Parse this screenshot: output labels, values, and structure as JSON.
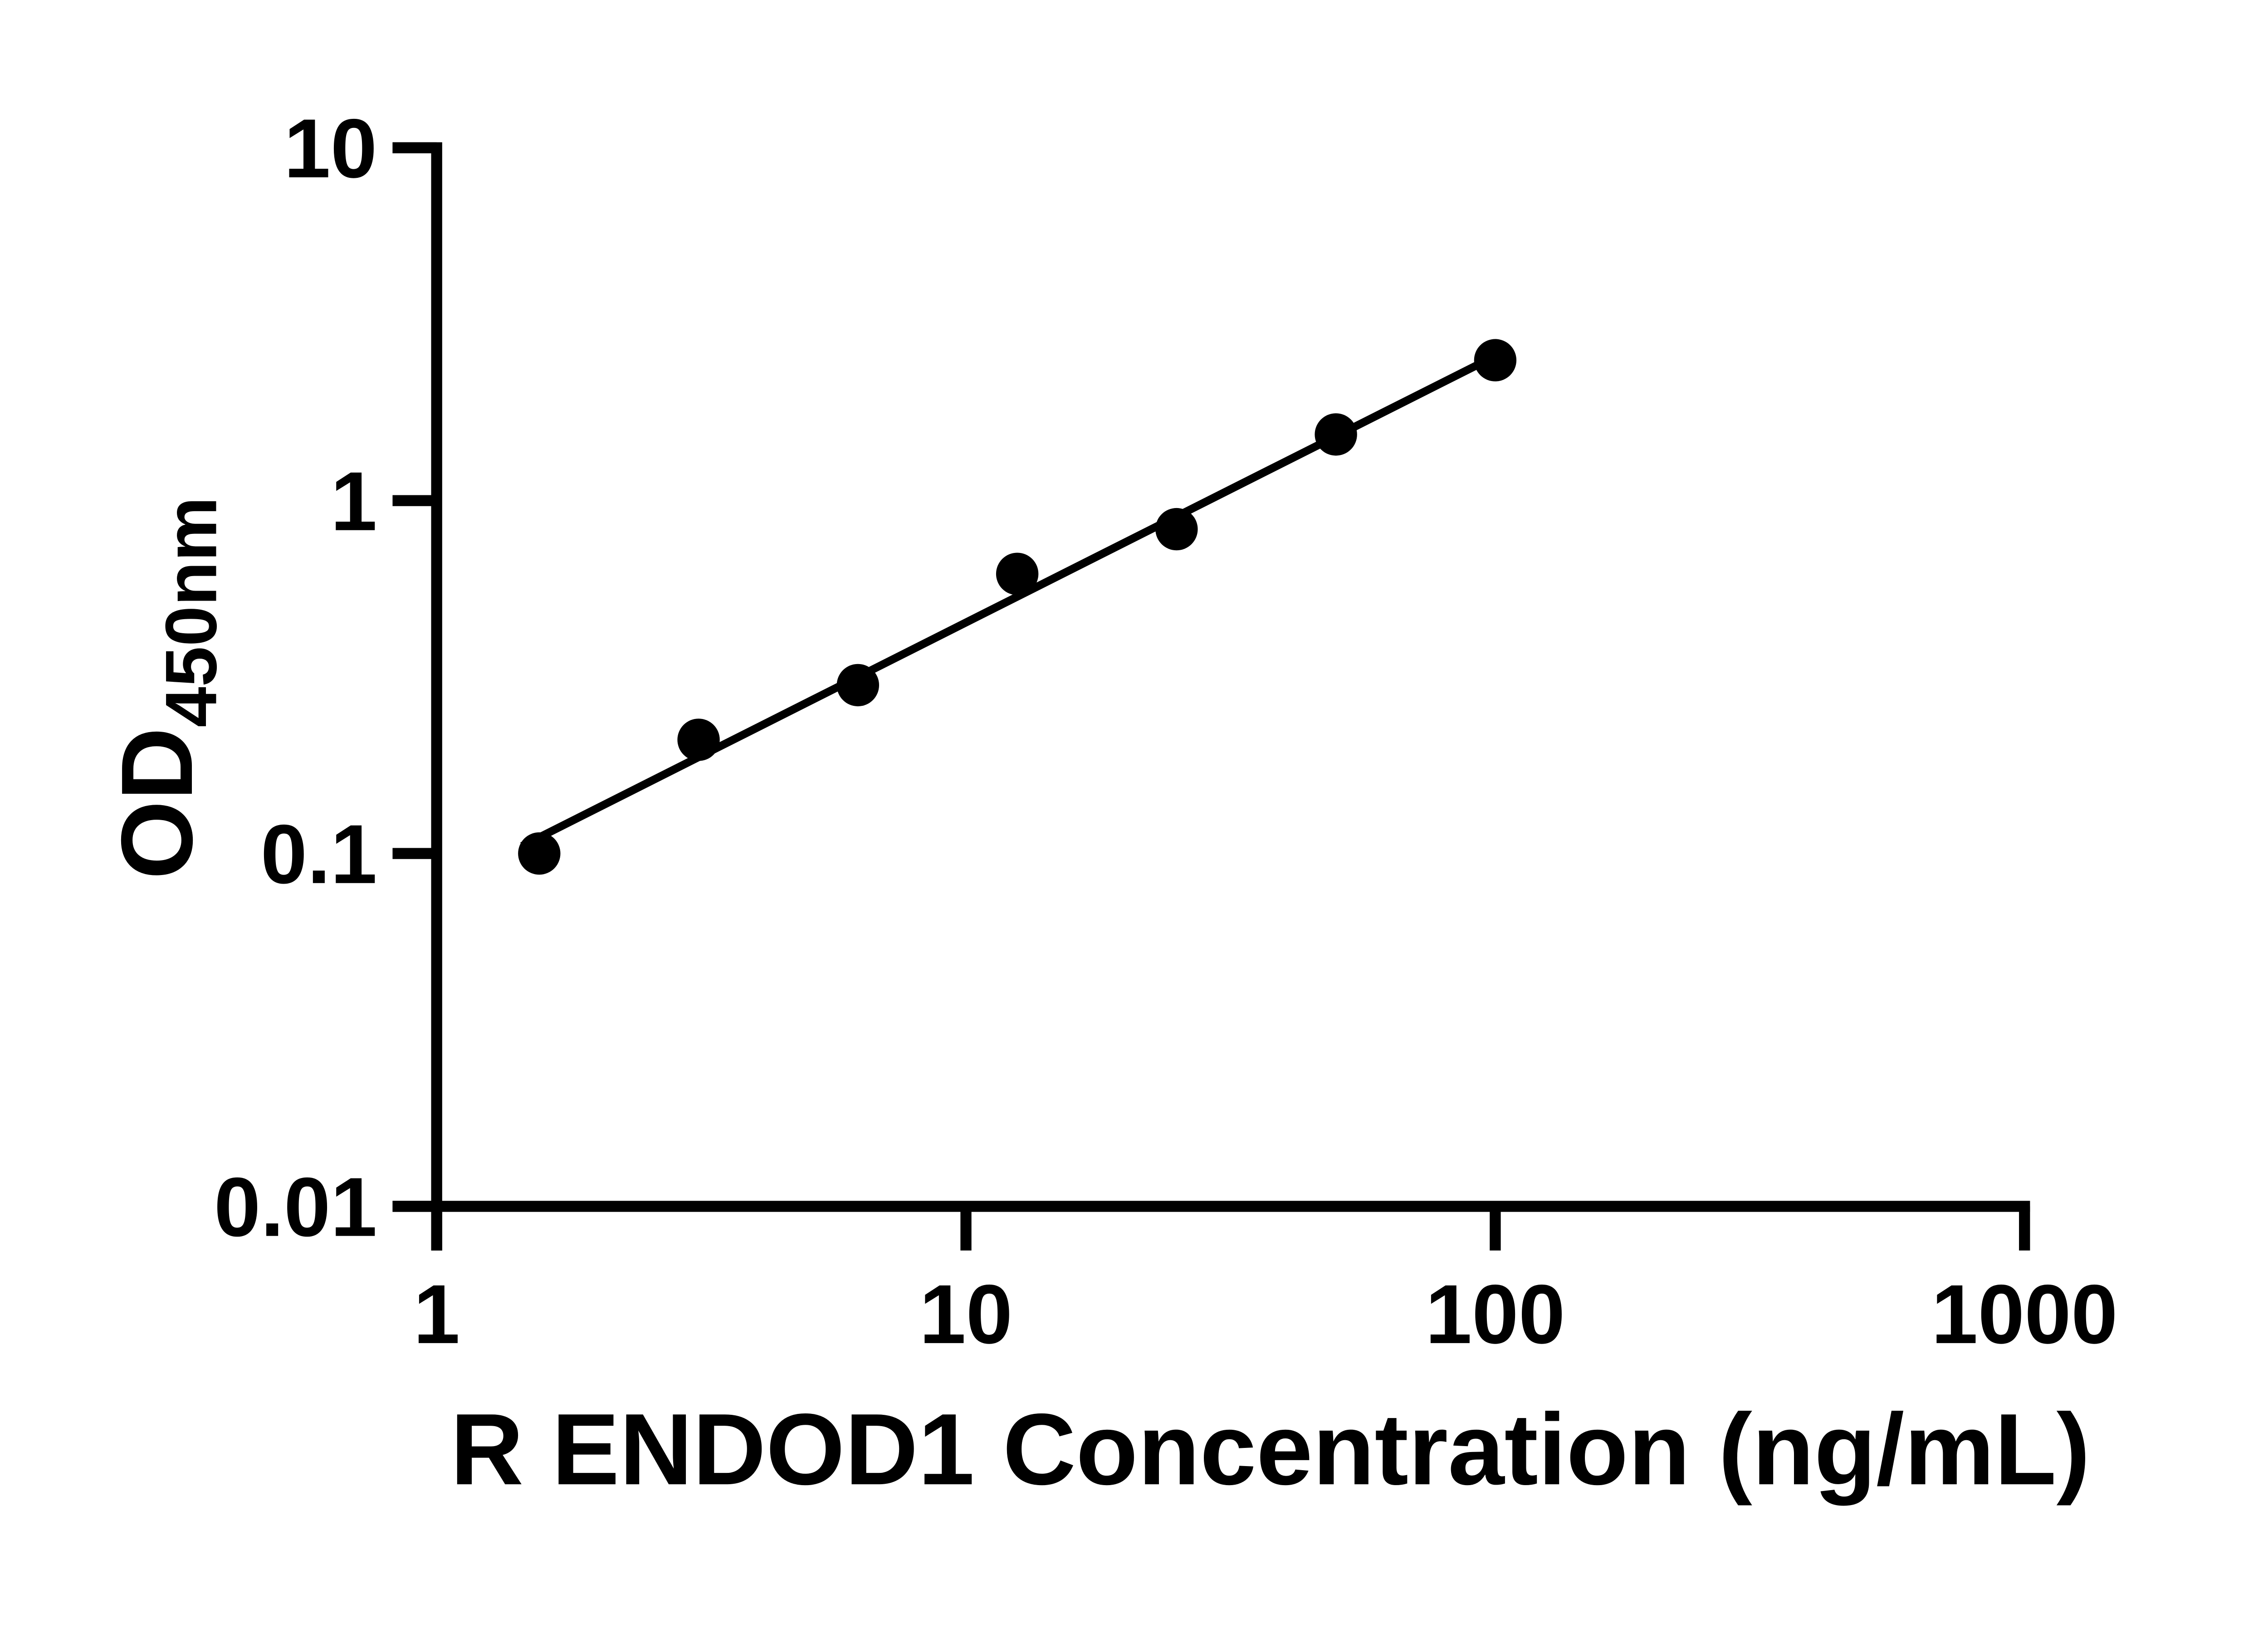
{
  "figure": {
    "background": "#ffffff",
    "foreground": "#000000"
  },
  "chart_data": {
    "type": "scatter",
    "x_scale": "log",
    "y_scale": "log",
    "x": [
      1.5625,
      3.125,
      6.25,
      12.5,
      25,
      50,
      100
    ],
    "y": [
      0.1,
      0.21,
      0.3,
      0.62,
      0.83,
      1.54,
      2.5
    ],
    "trendline": {
      "x1": 1.45,
      "y1": 0.105,
      "x2": 100,
      "y2": 2.57
    },
    "xlabel": "R ENDOD1 Concentration (ng/mL)",
    "ylabel_main": "OD",
    "ylabel_sub": "450nm",
    "x_ticks": [
      "1",
      "10",
      "100",
      "1000"
    ],
    "y_ticks": [
      "10",
      "1",
      "0.1",
      "0.01"
    ],
    "xlim": [
      1,
      1000
    ],
    "ylim": [
      0.01,
      10
    ],
    "grid": false,
    "legend": "none",
    "marker_color": "#000000",
    "line_color": "#000000",
    "axis_color": "#000000"
  }
}
